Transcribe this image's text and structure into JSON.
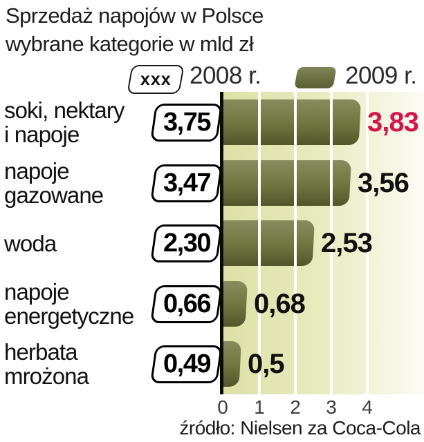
{
  "title": {
    "line1": "Sprzedaż napojów w Polsce",
    "line2": "wybrane kategorie w mld zł"
  },
  "legend": {
    "box_symbol": "xxx",
    "year_2008": "2008 r.",
    "year_2009": "2009 r."
  },
  "rows": [
    {
      "label1": "soki, nektary",
      "label2": "i napoje",
      "value_2008": "3,75",
      "value_2009": "3,83",
      "v2008": 3.75,
      "v2009": 3.83,
      "highlight": true
    },
    {
      "label1": "napoje",
      "label2": "gazowane",
      "value_2008": "3,47",
      "value_2009": "3,56",
      "v2008": 3.47,
      "v2009": 3.56,
      "highlight": false
    },
    {
      "label1": "woda",
      "label2": "",
      "value_2008": "2,30",
      "value_2009": "2,53",
      "v2008": 2.3,
      "v2009": 2.53,
      "highlight": false
    },
    {
      "label1": "napoje",
      "label2": "energetyczne",
      "value_2008": "0,66",
      "value_2009": "0,68",
      "v2008": 0.66,
      "v2009": 0.68,
      "highlight": false
    },
    {
      "label1": "herbata",
      "label2": "mrożona",
      "value_2008": "0,49",
      "value_2009": "0,5",
      "v2008": 0.49,
      "v2009": 0.5,
      "highlight": false
    }
  ],
  "axis": {
    "ticks": [
      "0",
      "1",
      "2",
      "3",
      "4"
    ]
  },
  "source": "źródło: Nielsen za Coca-Cola",
  "colors": {
    "bar": "#70753f",
    "bar_top": "#878c5e",
    "bar_bottom": "#51562b",
    "plot_bg_left": "#dde1a6",
    "plot_bg_right": "#fbfbf4",
    "gridline": "#ffffff",
    "axis_line": "#0b0b0b",
    "highlight_value": "#d2154a",
    "value_text": "#101010",
    "text": "#1e1e1e"
  },
  "chart_data": {
    "type": "bar",
    "orientation": "horizontal",
    "title": "Sprzedaż napojów w Polsce — wybrane kategorie w mld zł",
    "categories": [
      "soki, nektary i napoje",
      "napoje gazowane",
      "woda",
      "napoje energetyczne",
      "herbata mrożona"
    ],
    "series": [
      {
        "name": "2008 r.",
        "values": [
          3.75,
          3.47,
          2.3,
          0.66,
          0.49
        ]
      },
      {
        "name": "2009 r.",
        "values": [
          3.83,
          3.56,
          2.53,
          0.68,
          0.5
        ]
      }
    ],
    "unit": "mld zł",
    "xlim": [
      0,
      5.5
    ],
    "xticks": [
      0,
      1,
      2,
      3,
      4
    ],
    "grid": true,
    "legend_position": "top",
    "note": "2008 values shown as outlined boxes, 2009 values drawn as olive bars",
    "source": "źródło: Nielsen za Coca-Cola"
  }
}
